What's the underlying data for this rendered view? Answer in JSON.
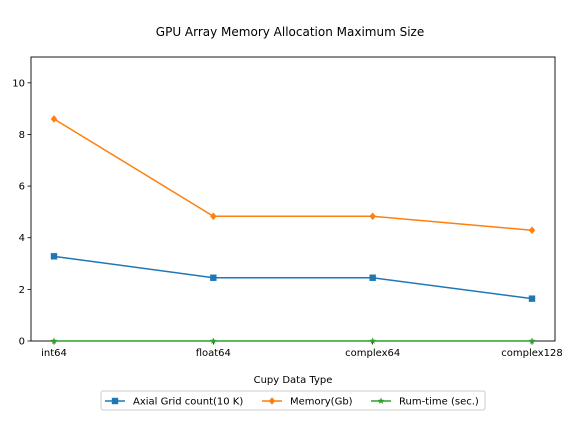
{
  "chart_data": {
    "type": "line",
    "title": "GPU Array Memory Allocation Maximum Size",
    "xlabel": "Cupy Data Type",
    "ylabel": "",
    "categories": [
      "int64",
      "float64",
      "complex64",
      "complex128"
    ],
    "ylim": [
      0,
      11
    ],
    "yticks": [
      0,
      2,
      4,
      6,
      8,
      10
    ],
    "grid": false,
    "legend_position": "bottom-center",
    "series": [
      {
        "name": "Axial Grid count(10 K)",
        "values": [
          3.28,
          2.45,
          2.45,
          1.64
        ],
        "color": "#1f77b4",
        "marker": "square"
      },
      {
        "name": "Memory(Gb)",
        "values": [
          8.6,
          4.83,
          4.83,
          4.29
        ],
        "color": "#ff7f0e",
        "marker": "diamond"
      },
      {
        "name": "Rum-time (sec.)",
        "values": [
          0.0,
          0.0,
          0.0,
          0.0
        ],
        "color": "#2ca02c",
        "marker": "star"
      }
    ]
  }
}
